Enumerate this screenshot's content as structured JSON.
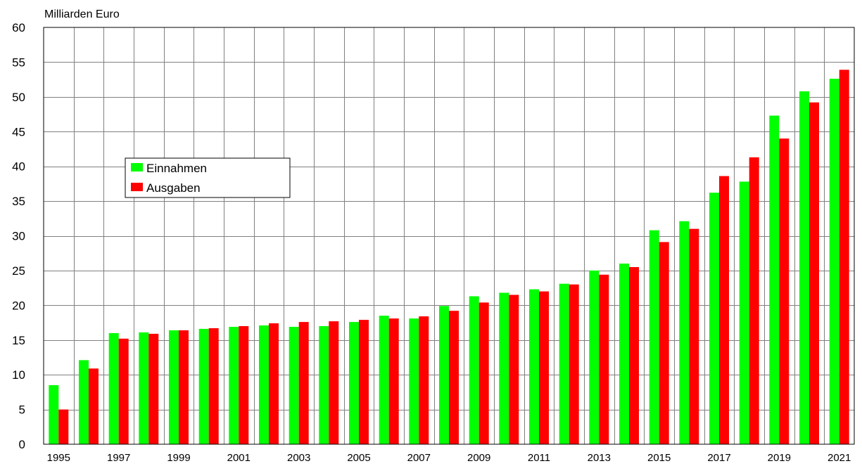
{
  "chart_data": {
    "type": "bar",
    "ylabel": "Milliarden Euro",
    "ylim": [
      0,
      60
    ],
    "yticks": [
      0,
      5,
      10,
      15,
      20,
      25,
      30,
      35,
      40,
      45,
      50,
      55,
      60
    ],
    "categories": [
      "1995",
      "1996",
      "1997",
      "1998",
      "1999",
      "2000",
      "2001",
      "2002",
      "2003",
      "2004",
      "2005",
      "2006",
      "2007",
      "2008",
      "2009",
      "2010",
      "2011",
      "2012",
      "2013",
      "2014",
      "2015",
      "2016",
      "2017",
      "2018",
      "2019",
      "2020",
      "2021"
    ],
    "x_tick_labels": [
      "1995",
      "",
      "1997",
      "",
      "1999",
      "",
      "2001",
      "",
      "2003",
      "",
      "2005",
      "",
      "2007",
      "",
      "2009",
      "",
      "2011",
      "",
      "2013",
      "",
      "2015",
      "",
      "2017",
      "",
      "2019",
      "",
      "2021"
    ],
    "grid": true,
    "legend_position": "upper-left",
    "series": [
      {
        "name": "Einnahmen",
        "color": "#00ff00",
        "values": [
          8.5,
          12.1,
          16.0,
          16.1,
          16.4,
          16.6,
          16.9,
          17.1,
          16.9,
          17.0,
          17.6,
          18.5,
          18.1,
          19.9,
          21.3,
          21.8,
          22.3,
          23.1,
          25.0,
          26.0,
          30.8,
          32.1,
          36.2,
          37.8,
          47.3,
          50.8,
          52.6
        ]
      },
      {
        "name": "Ausgaben",
        "color": "#ff0000",
        "values": [
          5.0,
          10.9,
          15.2,
          15.9,
          16.4,
          16.7,
          17.0,
          17.4,
          17.6,
          17.7,
          17.9,
          18.1,
          18.4,
          19.2,
          20.4,
          21.5,
          22.0,
          23.0,
          24.4,
          25.5,
          29.1,
          31.0,
          38.6,
          41.3,
          44.0,
          49.2,
          53.9
        ]
      }
    ]
  }
}
